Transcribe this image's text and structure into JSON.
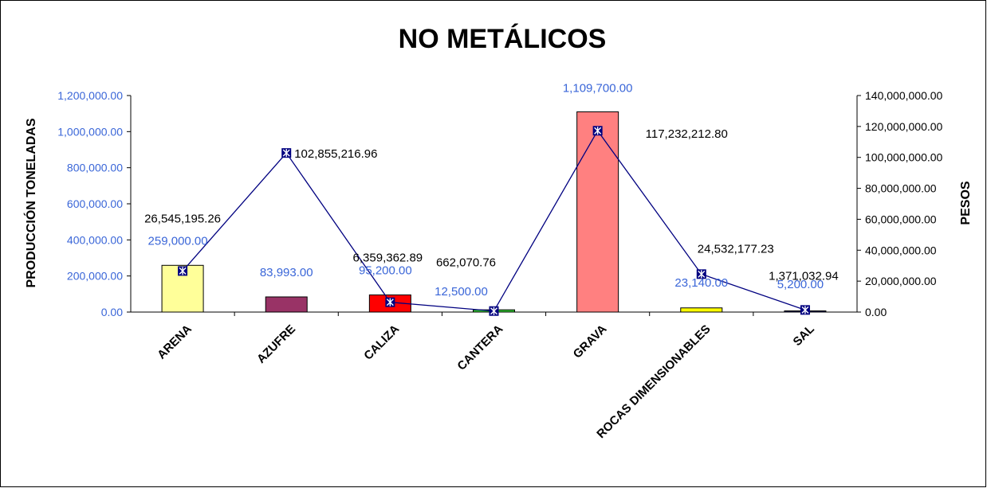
{
  "chart_data": {
    "type": "bar+line",
    "title": "NO METÁLICOS",
    "ylabel": "PRODUCCIÓN TONELADAS",
    "y2label": "PESOS",
    "categories": [
      "ARENA",
      "AZUFRE",
      "CALIZA",
      "CANTERA",
      "GRAVA",
      "ROCAS DIMENSIONABLES",
      "SAL"
    ],
    "ylim": [
      0,
      1200000
    ],
    "y2lim": [
      0,
      140000000
    ],
    "yticks": [
      "0.00",
      "200,000.00",
      "400,000.00",
      "600,000.00",
      "800,000.00",
      "1,000,000.00",
      "1,200,000.00"
    ],
    "y2ticks": [
      "0.00",
      "20,000,000.00",
      "40,000,000.00",
      "60,000,000.00",
      "80,000,000.00",
      "100,000,000.00",
      "120,000,000.00",
      "140,000,000.00"
    ],
    "grid": false,
    "legend": "none",
    "bars": {
      "axis": "left",
      "values": [
        259000,
        83993,
        95200,
        12500,
        1109700,
        23140,
        5200
      ],
      "labels": [
        "259,000.00",
        "83,993.00",
        "95,200.00",
        "12,500.00",
        "1,109,700.00",
        "23,140.00",
        "5,200.00"
      ],
      "colors": [
        "#ffff99",
        "#993366",
        "#ff0000",
        "#33cc33",
        "#ff8080",
        "#ffff00",
        "#1a1a6e"
      ]
    },
    "line": {
      "axis": "right",
      "values": [
        26545195.26,
        102855216.96,
        6359362.89,
        662070.76,
        117232212.8,
        24532177.23,
        1371032.94
      ],
      "labels": [
        "26,545,195.26",
        "102,855,216.96",
        "6,359,362.89",
        "662,070.76",
        "117,232,212.80",
        "24,532,177.23",
        "1,371,032.94"
      ],
      "color": "#000080"
    }
  }
}
